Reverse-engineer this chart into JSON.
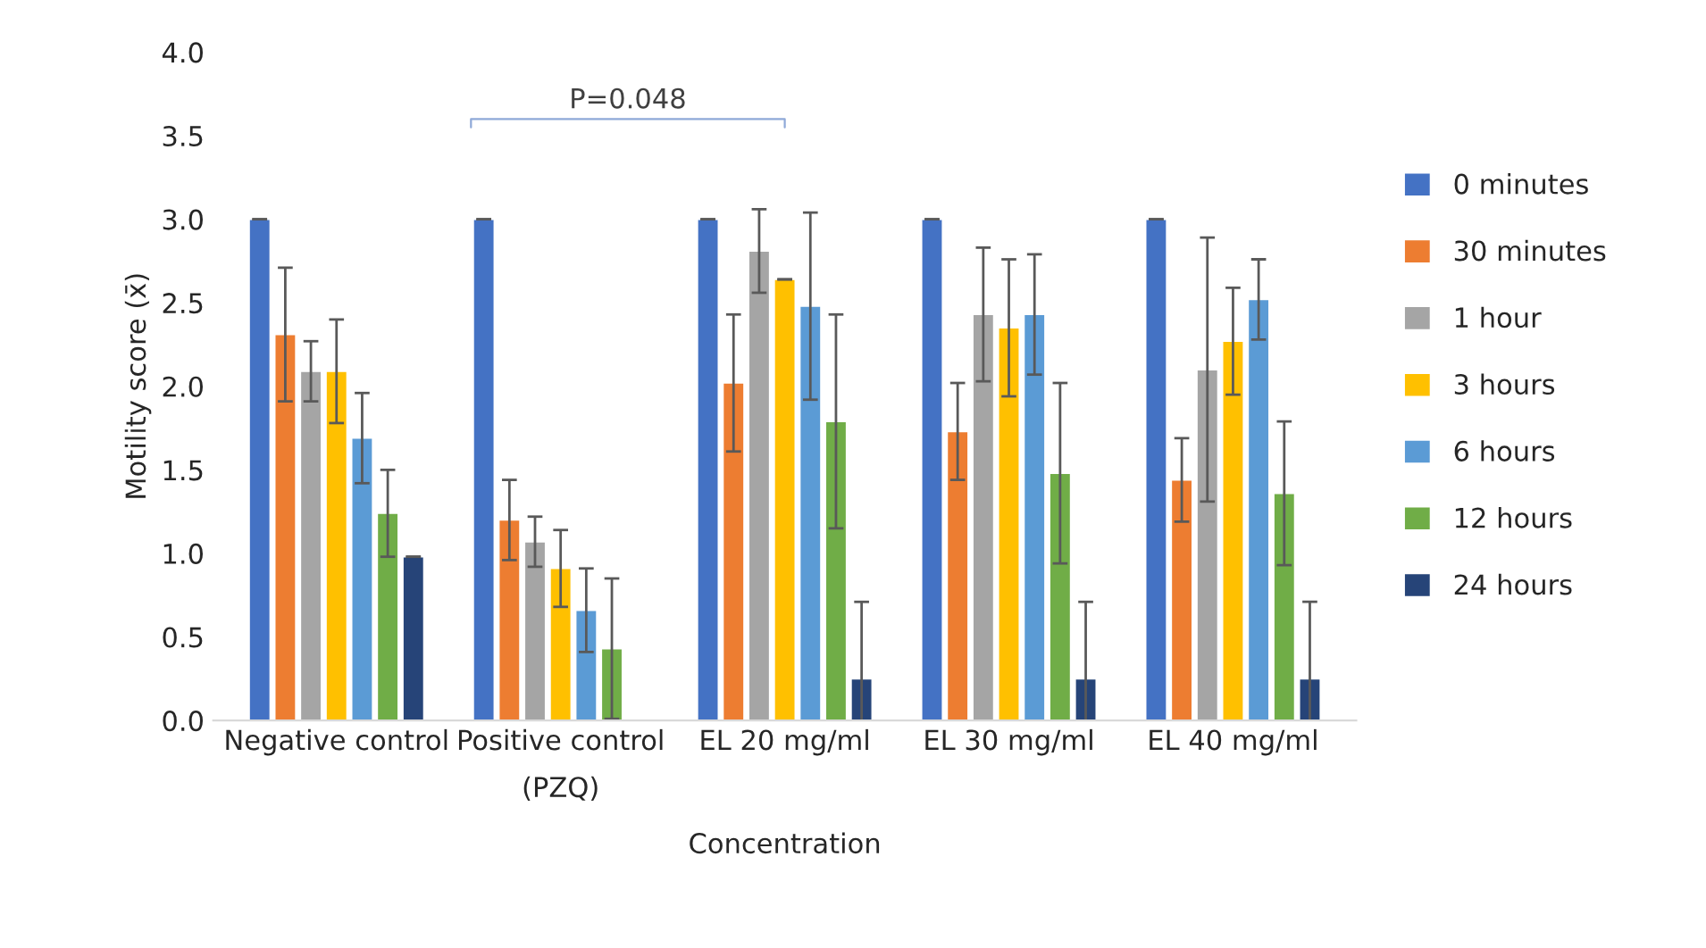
{
  "chart_data": {
    "type": "bar",
    "xlabel": "Concentration",
    "ylabel": "Motility score (x̄)",
    "categories": [
      "Negative control",
      "Positive control\n(PZQ)",
      "EL 20 mg/ml",
      "EL 30 mg/ml",
      "EL 40 mg/ml"
    ],
    "series": [
      {
        "name": "0 minutes",
        "color": "#4472c4",
        "values": [
          3.0,
          3.0,
          3.0,
          3.0,
          3.0
        ],
        "errors": [
          0,
          0,
          0,
          0,
          0
        ]
      },
      {
        "name": "30 minutes",
        "color": "#ed7d31",
        "values": [
          2.31,
          1.2,
          2.02,
          1.73,
          1.44
        ],
        "errors": [
          0.4,
          0.24,
          0.41,
          0.29,
          0.25
        ]
      },
      {
        "name": "1 hour",
        "color": "#a5a5a5",
        "values": [
          2.09,
          1.07,
          2.81,
          2.43,
          2.1
        ],
        "errors": [
          0.18,
          0.15,
          0.25,
          0.4,
          0.79
        ]
      },
      {
        "name": "3 hours",
        "color": "#ffc000",
        "values": [
          2.09,
          0.91,
          2.64,
          2.35,
          2.27
        ],
        "errors": [
          0.31,
          0.23,
          0,
          0.41,
          0.32
        ]
      },
      {
        "name": "6 hours",
        "color": "#5b9bd5",
        "values": [
          1.69,
          0.66,
          2.48,
          2.43,
          2.52
        ],
        "errors": [
          0.27,
          0.25,
          0.56,
          0.36,
          0.24
        ]
      },
      {
        "name": "12 hours",
        "color": "#70ad47",
        "values": [
          1.24,
          0.43,
          1.79,
          1.48,
          1.36
        ],
        "errors": [
          0.26,
          0.42,
          0.64,
          0.54,
          0.43
        ]
      },
      {
        "name": "24 hours",
        "color": "#264478",
        "values": [
          0.98,
          null,
          0.25,
          0.25,
          0.25
        ],
        "errors": [
          0,
          null,
          0.46,
          0.46,
          0.46
        ]
      }
    ],
    "ylim": [
      0,
      4
    ],
    "yticks": [
      {
        "value": 0,
        "label": "0.0"
      },
      {
        "value": 0.5,
        "label": "0.5"
      },
      {
        "value": 1,
        "label": "1.0"
      },
      {
        "value": 1.5,
        "label": "1.5"
      },
      {
        "value": 2,
        "label": "2.0"
      },
      {
        "value": 2.5,
        "label": "2.5"
      },
      {
        "value": 3,
        "label": "3.0"
      },
      {
        "value": 3.5,
        "label": "3.5"
      },
      {
        "value": 4,
        "label": "4.0"
      }
    ],
    "annotations": [
      "P=0.048"
    ],
    "legend": "right",
    "grid": false
  }
}
